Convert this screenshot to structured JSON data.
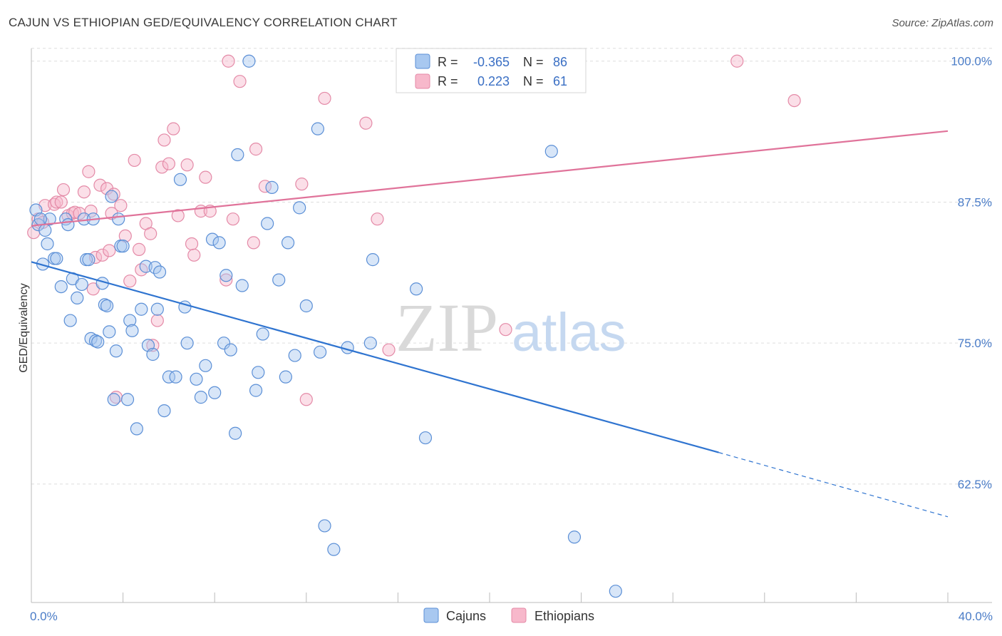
{
  "title": "CAJUN VS ETHIOPIAN GED/EQUIVALENCY CORRELATION CHART",
  "source": "Source: ZipAtlas.com",
  "watermark": {
    "zip": "ZIP",
    "atlas": "atlas"
  },
  "colors": {
    "cajun_fill": "#a8c8f0",
    "cajun_stroke": "#5b8fd6",
    "cajun_line": "#2f74d0",
    "eth_fill": "#f7b8cb",
    "eth_stroke": "#e48aa7",
    "eth_line": "#e0739a",
    "grid": "#dddddd",
    "tick_label": "#4a7cc7"
  },
  "legend": {
    "r_label": "R =",
    "n_label": "N =",
    "cajun": {
      "r": "-0.365",
      "n": "86"
    },
    "eth": {
      "r": "0.223",
      "n": "61"
    }
  },
  "chart_data": {
    "type": "scatter",
    "title": "CAJUN VS ETHIOPIAN GED/EQUIVALENCY CORRELATION CHART",
    "xlabel": "",
    "ylabel": "GED/Equivalency",
    "xlim": [
      0,
      40
    ],
    "ylim": [
      52,
      101.5
    ],
    "x_tick_labels": [
      {
        "value": 0,
        "label": "0.0%"
      },
      {
        "value": 40,
        "label": "40.0%"
      }
    ],
    "y_tick_labels": [
      {
        "value": 100,
        "label": "100.0%"
      },
      {
        "value": 87.5,
        "label": "87.5%"
      },
      {
        "value": 75,
        "label": "75.0%"
      },
      {
        "value": 62.5,
        "label": "62.5%"
      }
    ],
    "grid": true,
    "legend_position": "top-center",
    "series": [
      {
        "name": "Cajuns",
        "trend": {
          "x0": 0,
          "y0": 82.2,
          "x1": 30,
          "y1": 65.3,
          "dashed_to_x": 40,
          "dashed_to_y": 59.6
        },
        "points": [
          [
            0.2,
            86.8
          ],
          [
            0.3,
            85.5
          ],
          [
            0.5,
            82.0
          ],
          [
            0.6,
            85.0
          ],
          [
            0.7,
            83.8
          ],
          [
            0.8,
            86.0
          ],
          [
            1.0,
            82.5
          ],
          [
            1.1,
            82.5
          ],
          [
            1.3,
            80.0
          ],
          [
            1.5,
            86.0
          ],
          [
            1.6,
            85.5
          ],
          [
            1.7,
            77.0
          ],
          [
            1.8,
            80.7
          ],
          [
            2.0,
            79.0
          ],
          [
            2.2,
            80.2
          ],
          [
            2.3,
            86.0
          ],
          [
            2.4,
            82.4
          ],
          [
            2.5,
            82.4
          ],
          [
            2.6,
            75.4
          ],
          [
            2.7,
            86.0
          ],
          [
            2.8,
            75.2
          ],
          [
            2.9,
            75.1
          ],
          [
            3.1,
            80.3
          ],
          [
            3.2,
            78.4
          ],
          [
            3.3,
            78.3
          ],
          [
            3.4,
            76.0
          ],
          [
            3.5,
            88.0
          ],
          [
            3.6,
            70.0
          ],
          [
            3.7,
            74.3
          ],
          [
            3.8,
            86.0
          ],
          [
            3.9,
            83.6
          ],
          [
            4.0,
            83.6
          ],
          [
            4.2,
            70.0
          ],
          [
            4.3,
            77.0
          ],
          [
            4.4,
            76.1
          ],
          [
            4.6,
            67.4
          ],
          [
            4.8,
            78.0
          ],
          [
            5.0,
            81.8
          ],
          [
            5.1,
            74.8
          ],
          [
            5.3,
            74.0
          ],
          [
            5.4,
            81.7
          ],
          [
            5.5,
            78.0
          ],
          [
            5.6,
            81.3
          ],
          [
            5.8,
            69.0
          ],
          [
            6.0,
            72.0
          ],
          [
            6.3,
            72.0
          ],
          [
            6.5,
            89.5
          ],
          [
            6.7,
            78.2
          ],
          [
            6.8,
            75.0
          ],
          [
            7.2,
            71.8
          ],
          [
            7.4,
            70.2
          ],
          [
            7.6,
            73.0
          ],
          [
            7.9,
            84.2
          ],
          [
            8.0,
            70.6
          ],
          [
            8.2,
            83.9
          ],
          [
            8.4,
            75.0
          ],
          [
            8.5,
            81.0
          ],
          [
            8.7,
            74.4
          ],
          [
            8.9,
            67.0
          ],
          [
            9.0,
            91.7
          ],
          [
            9.2,
            80.1
          ],
          [
            9.5,
            100.0
          ],
          [
            9.8,
            70.8
          ],
          [
            9.9,
            72.4
          ],
          [
            10.1,
            75.8
          ],
          [
            10.3,
            85.6
          ],
          [
            10.5,
            88.8
          ],
          [
            10.8,
            80.6
          ],
          [
            11.1,
            72.0
          ],
          [
            11.2,
            83.9
          ],
          [
            11.5,
            73.9
          ],
          [
            11.7,
            87.0
          ],
          [
            12.0,
            78.3
          ],
          [
            12.5,
            94.0
          ],
          [
            12.6,
            74.2
          ],
          [
            12.8,
            58.8
          ],
          [
            13.2,
            56.7
          ],
          [
            13.8,
            74.6
          ],
          [
            14.8,
            75.0
          ],
          [
            14.9,
            82.4
          ],
          [
            16.8,
            79.8
          ],
          [
            17.2,
            66.6
          ],
          [
            22.7,
            92.0
          ],
          [
            23.7,
            57.8
          ],
          [
            25.5,
            53.0
          ],
          [
            0.4,
            86.0
          ]
        ]
      },
      {
        "name": "Ethiopians",
        "trend": {
          "x0": 0,
          "y0": 85.4,
          "x1": 40,
          "y1": 93.8
        },
        "points": [
          [
            0.1,
            84.8
          ],
          [
            0.3,
            86.0
          ],
          [
            0.5,
            85.7
          ],
          [
            0.6,
            87.2
          ],
          [
            1.0,
            87.3
          ],
          [
            1.1,
            87.5
          ],
          [
            1.3,
            87.5
          ],
          [
            1.4,
            88.6
          ],
          [
            1.6,
            86.3
          ],
          [
            1.8,
            86.5
          ],
          [
            1.9,
            86.6
          ],
          [
            2.1,
            86.5
          ],
          [
            2.3,
            88.4
          ],
          [
            2.5,
            90.2
          ],
          [
            2.6,
            86.7
          ],
          [
            2.7,
            79.8
          ],
          [
            2.8,
            82.6
          ],
          [
            3.0,
            89.0
          ],
          [
            3.1,
            82.8
          ],
          [
            3.3,
            88.7
          ],
          [
            3.4,
            83.2
          ],
          [
            3.5,
            86.5
          ],
          [
            3.6,
            88.2
          ],
          [
            3.7,
            70.2
          ],
          [
            3.9,
            87.2
          ],
          [
            4.1,
            84.5
          ],
          [
            4.3,
            80.5
          ],
          [
            4.5,
            91.2
          ],
          [
            4.7,
            83.3
          ],
          [
            4.8,
            81.5
          ],
          [
            5.0,
            85.6
          ],
          [
            5.2,
            84.7
          ],
          [
            5.3,
            74.8
          ],
          [
            5.5,
            77.0
          ],
          [
            5.7,
            90.6
          ],
          [
            5.8,
            93.0
          ],
          [
            6.0,
            90.9
          ],
          [
            6.2,
            94.0
          ],
          [
            6.4,
            86.3
          ],
          [
            6.8,
            90.8
          ],
          [
            7.0,
            83.8
          ],
          [
            7.1,
            82.8
          ],
          [
            7.4,
            86.7
          ],
          [
            7.6,
            89.7
          ],
          [
            7.8,
            86.7
          ],
          [
            8.5,
            80.6
          ],
          [
            8.8,
            86.0
          ],
          [
            8.6,
            100.0
          ],
          [
            9.1,
            98.2
          ],
          [
            9.7,
            83.9
          ],
          [
            9.8,
            92.2
          ],
          [
            10.2,
            88.9
          ],
          [
            11.8,
            89.1
          ],
          [
            12.0,
            70.0
          ],
          [
            12.8,
            96.7
          ],
          [
            14.6,
            94.5
          ],
          [
            15.1,
            86.0
          ],
          [
            15.6,
            74.4
          ],
          [
            20.7,
            76.2
          ],
          [
            30.8,
            100.0
          ],
          [
            33.3,
            96.5
          ]
        ]
      }
    ]
  }
}
